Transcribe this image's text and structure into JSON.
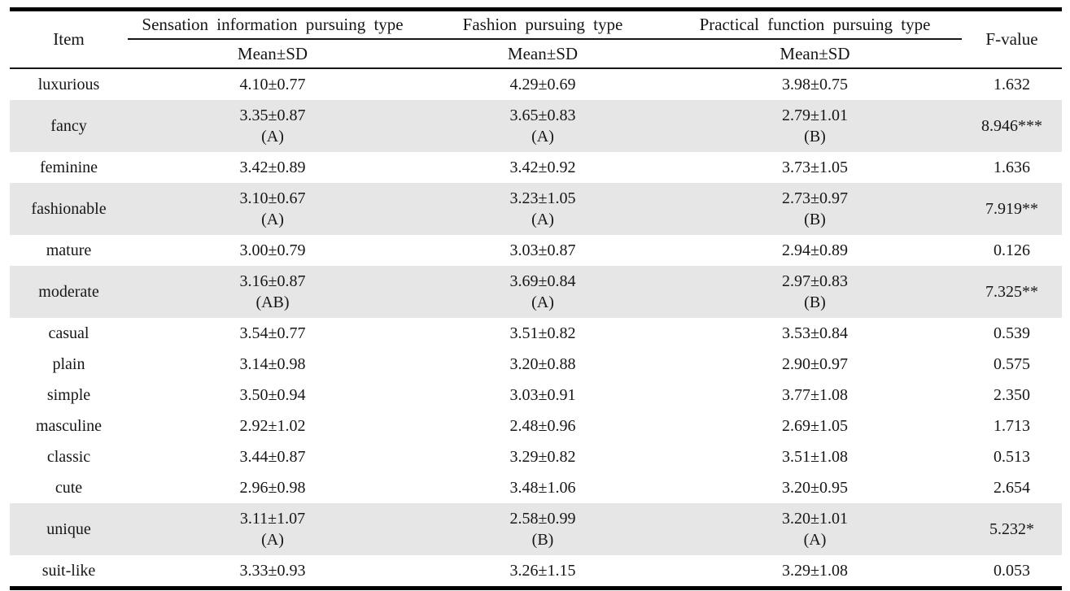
{
  "table": {
    "header": {
      "item": "Item",
      "groups": [
        "Sensation information pursuing type",
        "Fashion pursuing type",
        "Practical function pursuing type"
      ],
      "subheader": "Mean±SD",
      "f": "F-value"
    },
    "rows": [
      {
        "item": "luxurious",
        "m1": "4.10±0.77",
        "m2": "4.29±0.69",
        "m3": "3.98±0.75",
        "f": "1.632",
        "shaded": false
      },
      {
        "item": "fancy",
        "m1": "3.35±0.87",
        "g1": "(A)",
        "m2": "3.65±0.83",
        "g2": "(A)",
        "m3": "2.79±1.01",
        "g3": "(B)",
        "f": "8.946***",
        "shaded": true
      },
      {
        "item": "feminine",
        "m1": "3.42±0.89",
        "m2": "3.42±0.92",
        "m3": "3.73±1.05",
        "f": "1.636",
        "shaded": false
      },
      {
        "item": "fashionable",
        "m1": "3.10±0.67",
        "g1": "(A)",
        "m2": "3.23±1.05",
        "g2": "(A)",
        "m3": "2.73±0.97",
        "g3": "(B)",
        "f": "7.919**",
        "shaded": true
      },
      {
        "item": "mature",
        "m1": "3.00±0.79",
        "m2": "3.03±0.87",
        "m3": "2.94±0.89",
        "f": "0.126",
        "shaded": false
      },
      {
        "item": "moderate",
        "m1": "3.16±0.87",
        "g1": "(AB)",
        "m2": "3.69±0.84",
        "g2": "(A)",
        "m3": "2.97±0.83",
        "g3": "(B)",
        "f": "7.325**",
        "shaded": true
      },
      {
        "item": "casual",
        "m1": "3.54±0.77",
        "m2": "3.51±0.82",
        "m3": "3.53±0.84",
        "f": "0.539",
        "shaded": false
      },
      {
        "item": "plain",
        "m1": "3.14±0.98",
        "m2": "3.20±0.88",
        "m3": "2.90±0.97",
        "f": "0.575",
        "shaded": false
      },
      {
        "item": "simple",
        "m1": "3.50±0.94",
        "m2": "3.03±0.91",
        "m3": "3.77±1.08",
        "f": "2.350",
        "shaded": false
      },
      {
        "item": "masculine",
        "m1": "2.92±1.02",
        "m2": "2.48±0.96",
        "m3": "2.69±1.05",
        "f": "1.713",
        "shaded": false
      },
      {
        "item": "classic",
        "m1": "3.44±0.87",
        "m2": "3.29±0.82",
        "m3": "3.51±1.08",
        "f": "0.513",
        "shaded": false
      },
      {
        "item": "cute",
        "m1": "2.96±0.98",
        "m2": "3.48±1.06",
        "m3": "3.20±0.95",
        "f": "2.654",
        "shaded": false
      },
      {
        "item": "unique",
        "m1": "3.11±1.07",
        "g1": "(A)",
        "m2": "2.58±0.99",
        "g2": "(B)",
        "m3": "3.20±1.01",
        "g3": "(A)",
        "f": "5.232*",
        "shaded": true
      },
      {
        "item": "suit-like",
        "m1": "3.33±0.93",
        "m2": "3.26±1.15",
        "m3": "3.29±1.08",
        "f": "0.053",
        "shaded": false
      }
    ],
    "colors": {
      "shaded_row": "#e6e6e6",
      "rule": "#000000",
      "text": "#161616"
    }
  }
}
